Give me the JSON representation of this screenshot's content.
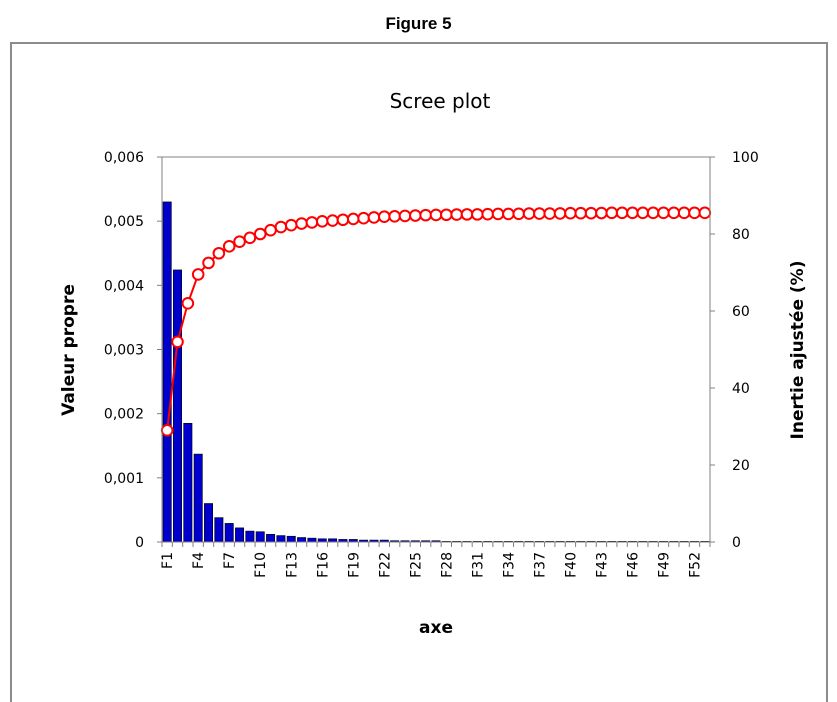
{
  "figure_label": "Figure 5",
  "chart_data": {
    "type": "bar",
    "title": "Scree plot",
    "xlabel": "axe",
    "ylabel": "Valeur propre",
    "y2label": "Inertie ajustée (%)",
    "ylim": [
      0,
      0.006
    ],
    "y2lim": [
      0,
      100
    ],
    "yticks": [
      "0",
      "0,001",
      "0,002",
      "0,003",
      "0,004",
      "0,005",
      "0,006"
    ],
    "y2ticks": [
      "0",
      "20",
      "40",
      "60",
      "80",
      "100"
    ],
    "categories": [
      "F1",
      "F2",
      "F3",
      "F4",
      "F5",
      "F6",
      "F7",
      "F8",
      "F9",
      "F10",
      "F11",
      "F12",
      "F13",
      "F14",
      "F15",
      "F16",
      "F17",
      "F18",
      "F19",
      "F20",
      "F21",
      "F22",
      "F23",
      "F24",
      "F25",
      "F26",
      "F27",
      "F28",
      "F29",
      "F30",
      "F31",
      "F32",
      "F33",
      "F34",
      "F35",
      "F36",
      "F37",
      "F38",
      "F39",
      "F40",
      "F41",
      "F42",
      "F43",
      "F44",
      "F45",
      "F46",
      "F47",
      "F48",
      "F49",
      "F50",
      "F51",
      "F52",
      "F53"
    ],
    "visible_tick_labels": [
      "F1",
      "F4",
      "F7",
      "F10",
      "F13",
      "F16",
      "F19",
      "F22",
      "F25",
      "F28",
      "F31",
      "F34",
      "F37",
      "F40",
      "F43",
      "F46",
      "F49",
      "F52"
    ],
    "series": [
      {
        "type": "bar",
        "axis": "left",
        "color": "#0000cc",
        "values": [
          0.0053,
          0.00424,
          0.00185,
          0.00137,
          0.0006,
          0.00038,
          0.00029,
          0.00022,
          0.00017,
          0.00016,
          0.00012,
          0.0001,
          9e-05,
          7e-05,
          6e-05,
          5e-05,
          5e-05,
          4e-05,
          4e-05,
          3e-05,
          3e-05,
          3e-05,
          2e-05,
          2e-05,
          2e-05,
          2e-05,
          2e-05,
          1e-05,
          1e-05,
          1e-05,
          1e-05,
          1e-05,
          1e-05,
          1e-05,
          1e-05,
          1e-05,
          1e-05,
          1e-05,
          1e-05,
          1e-05,
          1e-05,
          1e-05,
          1e-05,
          1e-05,
          1e-05,
          1e-05,
          1e-05,
          1e-05,
          1e-05,
          1e-05,
          1e-05,
          1e-05,
          1e-05
        ]
      },
      {
        "type": "line",
        "axis": "right",
        "color": "#ff0000",
        "marker": "open-circle",
        "values": [
          29,
          52,
          62,
          69.5,
          72.5,
          75,
          76.8,
          78,
          79,
          80,
          81,
          81.8,
          82.3,
          82.7,
          83,
          83.3,
          83.5,
          83.7,
          83.9,
          84.1,
          84.3,
          84.5,
          84.6,
          84.7,
          84.8,
          84.9,
          84.95,
          85,
          85.05,
          85.1,
          85.1,
          85.15,
          85.2,
          85.2,
          85.25,
          85.3,
          85.3,
          85.3,
          85.35,
          85.4,
          85.4,
          85.4,
          85.45,
          85.5,
          85.5,
          85.5,
          85.5,
          85.5,
          85.5,
          85.5,
          85.5,
          85.5,
          85.5
        ]
      }
    ],
    "grid": false,
    "legend": "none"
  }
}
